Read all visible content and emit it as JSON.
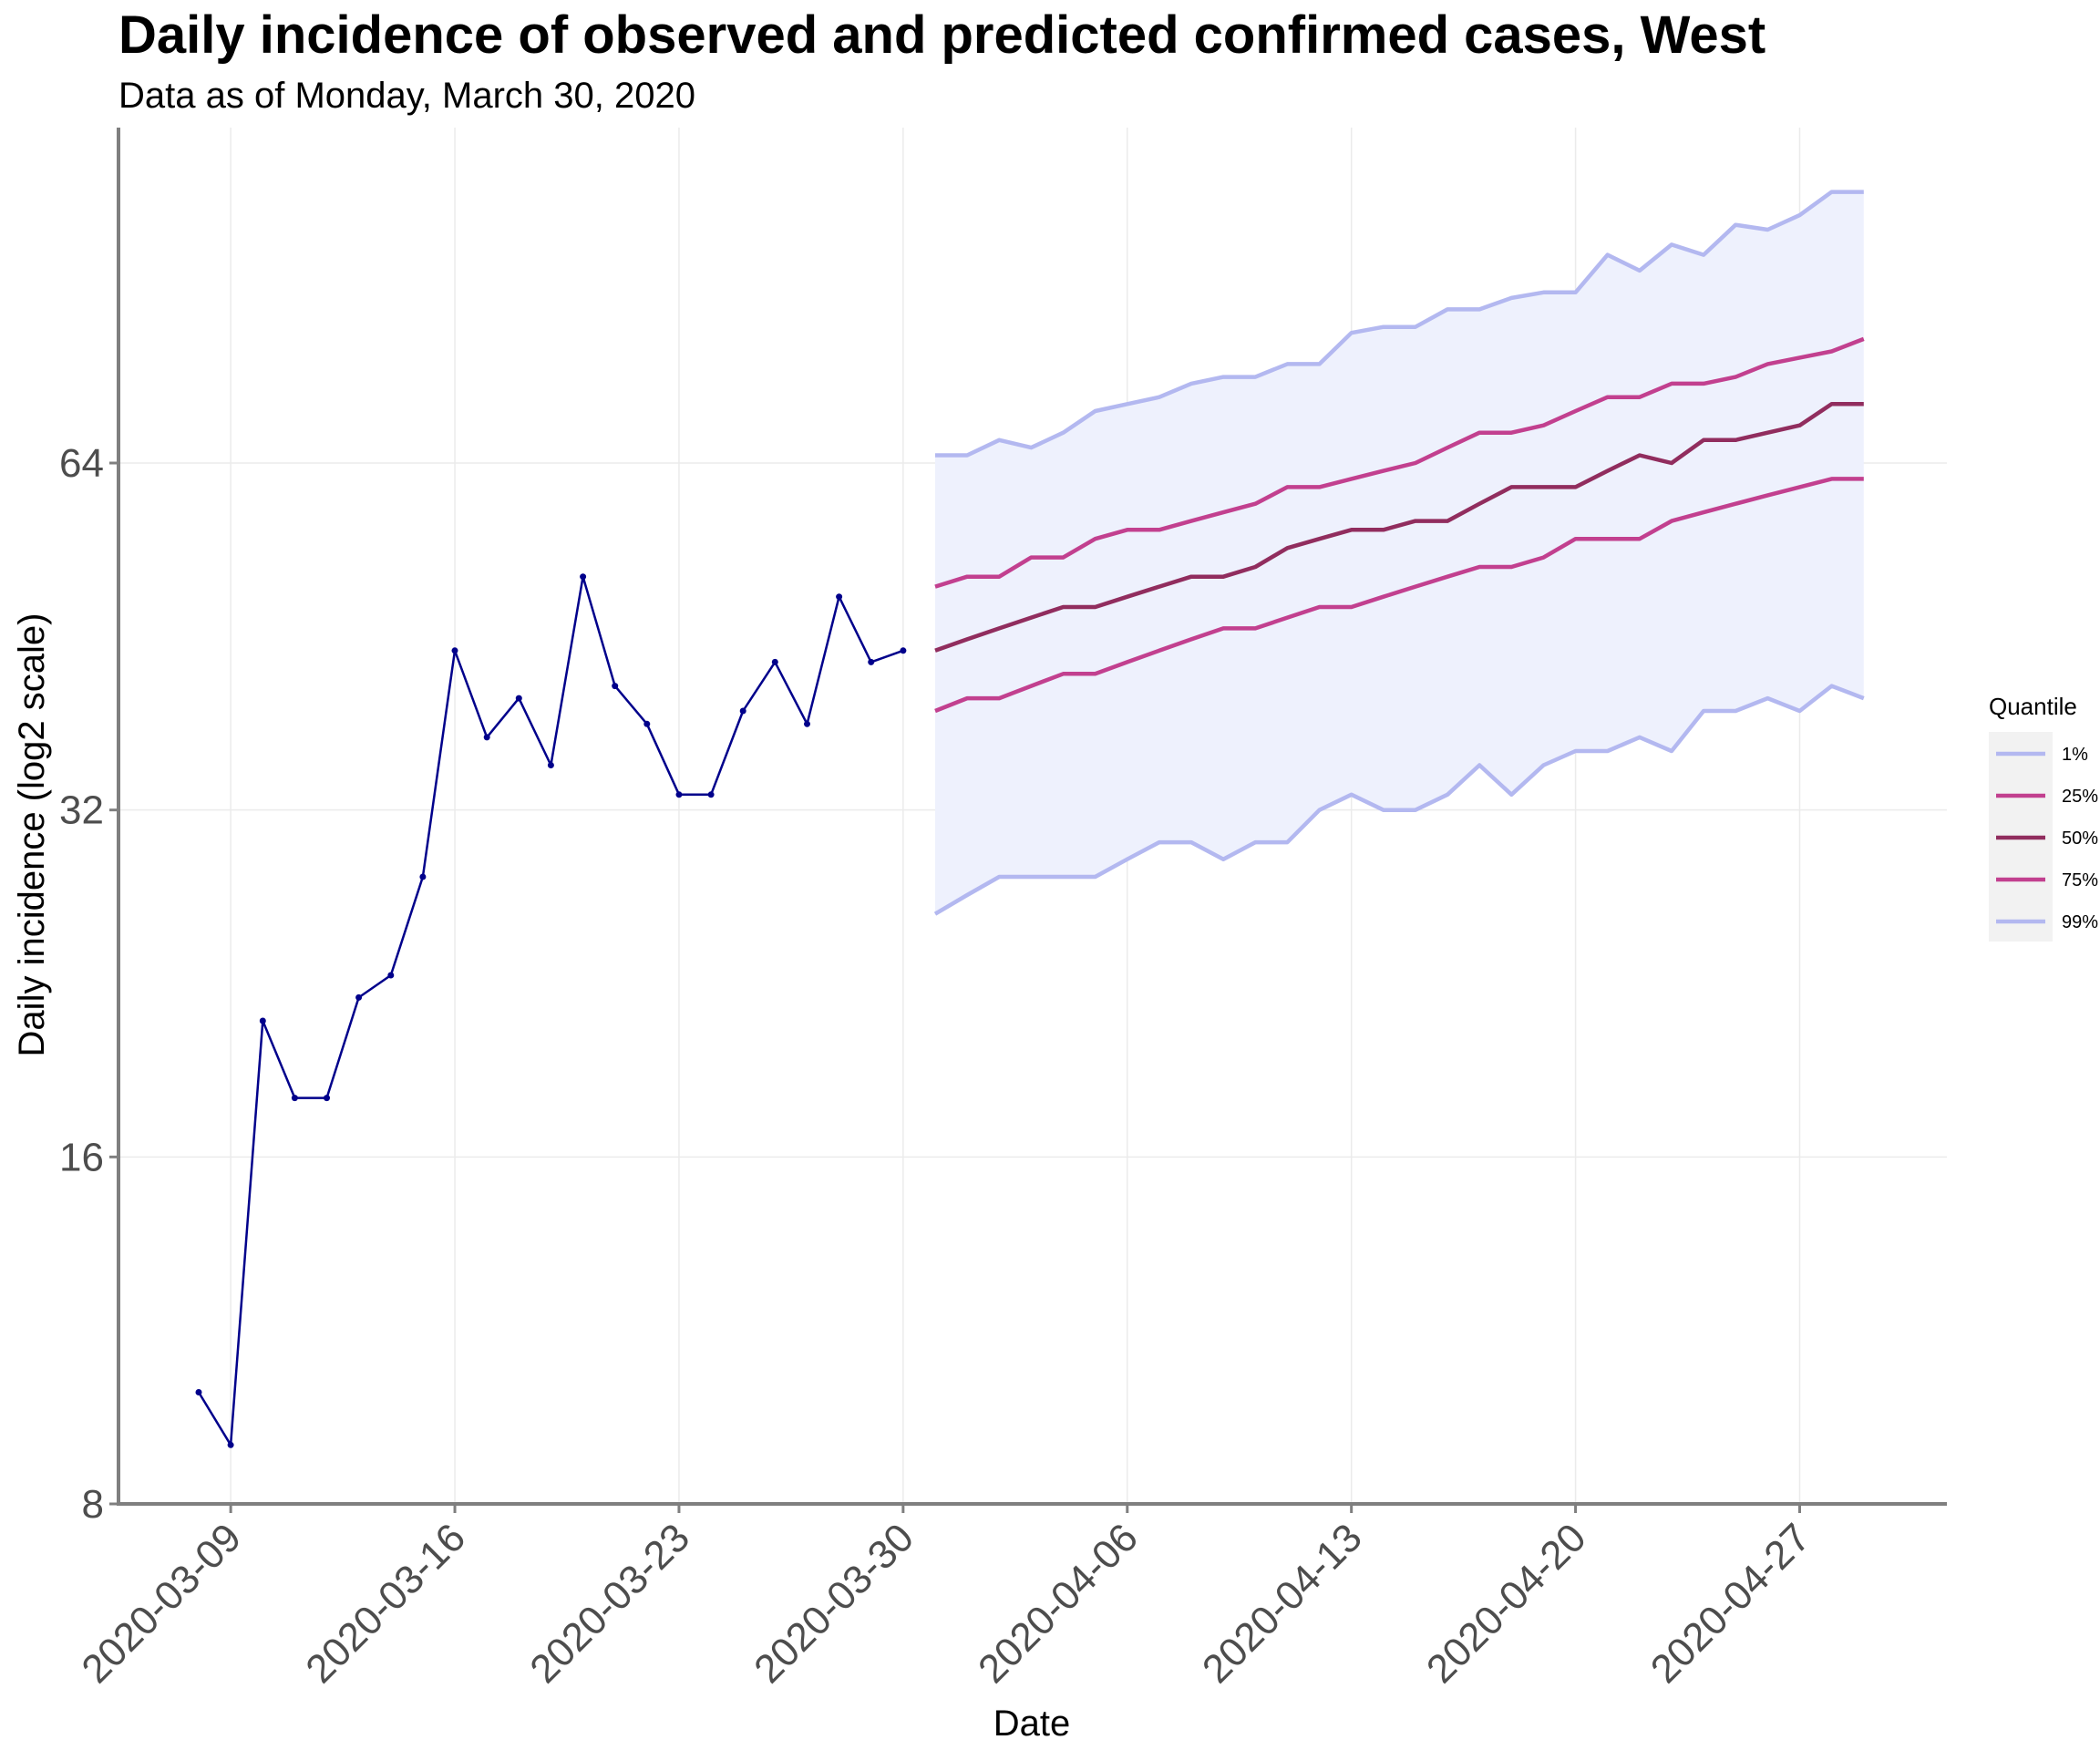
{
  "chart_data": {
    "type": "line",
    "title": "Daily incidence of observed and predicted confirmed cases,  West",
    "subtitle": "Data as of Monday, March 30, 2020",
    "xlabel": "Date",
    "ylabel": "Daily incidence (log2 scale)",
    "y_scale": "log2",
    "ylim": [
      8,
      96
    ],
    "y_ticks": [
      8,
      16,
      32,
      64
    ],
    "x_ticks": [
      "2020-03-09",
      "2020-03-16",
      "2020-03-23",
      "2020-03-30",
      "2020-04-06",
      "2020-04-13",
      "2020-04-20",
      "2020-04-27"
    ],
    "grid": true,
    "legend": {
      "title": "Quantile",
      "placement": "right",
      "entries": [
        {
          "label": "1%",
          "color": "#b3b8f0"
        },
        {
          "label": "25%",
          "color": "#c2408f"
        },
        {
          "label": "50%",
          "color": "#912d5e"
        },
        {
          "label": "75%",
          "color": "#c2408f"
        },
        {
          "label": "99%",
          "color": "#b3b8f0"
        }
      ]
    },
    "observed": {
      "color": "#00008b",
      "x": [
        "2020-03-08",
        "2020-03-09",
        "2020-03-10",
        "2020-03-11",
        "2020-03-12",
        "2020-03-13",
        "2020-03-14",
        "2020-03-15",
        "2020-03-16",
        "2020-03-17",
        "2020-03-18",
        "2020-03-19",
        "2020-03-20",
        "2020-03-21",
        "2020-03-22",
        "2020-03-23",
        "2020-03-24",
        "2020-03-25",
        "2020-03-26",
        "2020-03-27",
        "2020-03-28",
        "2020-03-29",
        "2020-03-30"
      ],
      "values": [
        10,
        9,
        21,
        18,
        18,
        22,
        23,
        28,
        44,
        37,
        40,
        35,
        51,
        41,
        38,
        33,
        33,
        39,
        43,
        38,
        49,
        43,
        44
      ]
    },
    "forecast": {
      "x": [
        "2020-03-31",
        "2020-04-01",
        "2020-04-02",
        "2020-04-03",
        "2020-04-04",
        "2020-04-05",
        "2020-04-06",
        "2020-04-07",
        "2020-04-08",
        "2020-04-09",
        "2020-04-10",
        "2020-04-11",
        "2020-04-12",
        "2020-04-13",
        "2020-04-14",
        "2020-04-15",
        "2020-04-16",
        "2020-04-17",
        "2020-04-18",
        "2020-04-19",
        "2020-04-20",
        "2020-04-21",
        "2020-04-22",
        "2020-04-23",
        "2020-04-24",
        "2020-04-25",
        "2020-04-26",
        "2020-04-27",
        "2020-04-28",
        "2020-04-29"
      ],
      "fill_color": "#eef1fd",
      "series": [
        {
          "name": "1%",
          "color": "#b3b8f0",
          "values": [
            26,
            27,
            28,
            28,
            28,
            28,
            29,
            30,
            30,
            29,
            30,
            30,
            32,
            33,
            32,
            32,
            33,
            35,
            33,
            35,
            36,
            36,
            37,
            36,
            39,
            39,
            40,
            39,
            41,
            40
          ]
        },
        {
          "name": "25%",
          "color": "#c2408f",
          "values": [
            39,
            40,
            40,
            41,
            42,
            42,
            43,
            44,
            45,
            46,
            46,
            47,
            48,
            48,
            49,
            50,
            51,
            52,
            52,
            53,
            55,
            55,
            55,
            57,
            58,
            59,
            60,
            61,
            62,
            62
          ]
        },
        {
          "name": "50%",
          "color": "#912d5e",
          "values": [
            44,
            45,
            46,
            47,
            48,
            48,
            49,
            50,
            51,
            51,
            52,
            54,
            55,
            56,
            56,
            57,
            57,
            59,
            61,
            61,
            61,
            63,
            65,
            64,
            67,
            67,
            68,
            69,
            72,
            72
          ]
        },
        {
          "name": "75%",
          "color": "#c2408f",
          "values": [
            50,
            51,
            51,
            53,
            53,
            55,
            56,
            56,
            57,
            58,
            59,
            61,
            61,
            62,
            63,
            64,
            66,
            68,
            68,
            69,
            71,
            73,
            73,
            75,
            75,
            76,
            78,
            79,
            80,
            82
          ]
        },
        {
          "name": "99%",
          "color": "#b3b8f0",
          "values": [
            65,
            65,
            67,
            66,
            68,
            71,
            72,
            73,
            75,
            76,
            76,
            78,
            78,
            83,
            84,
            84,
            87,
            87,
            89,
            90,
            90,
            97,
            94,
            99,
            97,
            103,
            102,
            105,
            110,
            110
          ]
        }
      ]
    }
  }
}
